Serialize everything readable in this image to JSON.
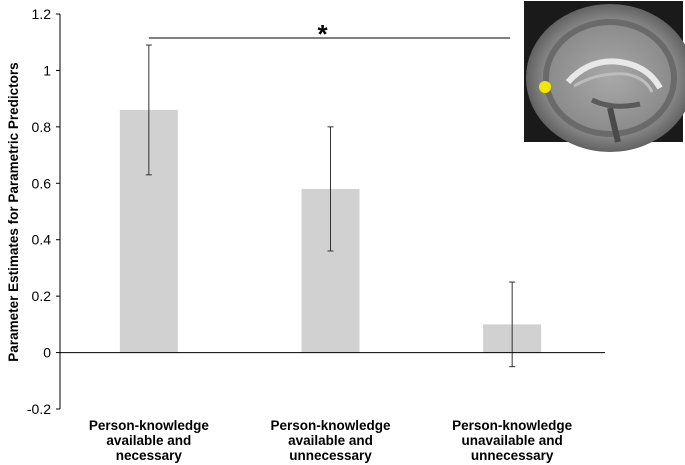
{
  "chart_data": {
    "type": "bar",
    "title": "",
    "xlabel": "",
    "ylabel": "Parameter Estimates for Parametric Predictors",
    "ylim": [
      -0.2,
      1.2
    ],
    "yticks": [
      -0.2,
      0,
      0.2,
      0.4,
      0.6,
      0.8,
      1,
      1.2
    ],
    "ytick_labels": [
      "-0.2",
      "0",
      "0.2",
      "0.4",
      "0.6",
      "0.8",
      "1",
      "1.2"
    ],
    "categories": [
      [
        "Person-knowledge",
        "available and",
        "necessary"
      ],
      [
        "Person-knowledge",
        "available and",
        "unnecessary"
      ],
      [
        "Person-knowledge",
        "unavailable and",
        "unnecessary"
      ]
    ],
    "values": [
      0.86,
      0.58,
      0.1
    ],
    "error_low": [
      0.63,
      0.36,
      -0.05
    ],
    "error_high": [
      1.09,
      0.8,
      0.25
    ],
    "bar_color": "#d1d1d1",
    "significance": {
      "from_category": 0,
      "to_category": 2,
      "label": "*"
    },
    "grid": false,
    "inset": "brain-sagittal-image"
  }
}
